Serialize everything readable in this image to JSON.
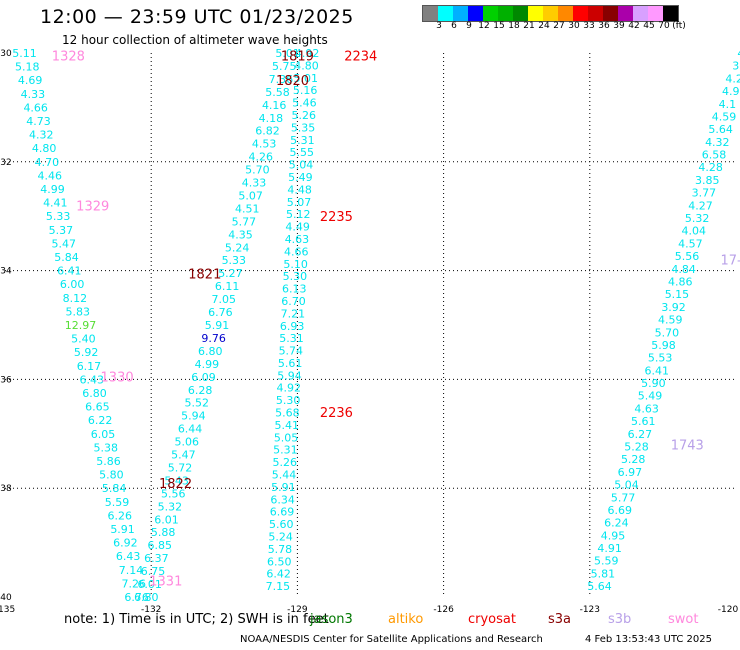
{
  "header": {
    "title": "12:00 — 23:59 UTC 01/23/2025",
    "subtitle": "12 hour collection of altimeter wave heights"
  },
  "colorbar": {
    "colors": [
      "#808080",
      "#00ffff",
      "#00b0ff",
      "#0000ff",
      "#00d000",
      "#00b000",
      "#008800",
      "#ffff00",
      "#ffcc00",
      "#ff8800",
      "#ff0000",
      "#cc0000",
      "#880000",
      "#aa00aa",
      "#d8a0ff",
      "#ff99ff",
      "#000000"
    ],
    "labels": [
      "3",
      "6",
      "9",
      "12",
      "15",
      "18",
      "21",
      "24",
      "27",
      "30",
      "33",
      "36",
      "39",
      "42",
      "45",
      "70",
      "(ft)"
    ]
  },
  "map": {
    "lat_labels": [
      "-30",
      "-32",
      "-34",
      "-36",
      "-38",
      "-40"
    ],
    "lon_labels": [
      "-135",
      "-132",
      "-129",
      "-126",
      "-123",
      "-120"
    ],
    "cycle_colors": {
      "dark": "#880000",
      "red": "#ee0000",
      "pink": "#ff88dd",
      "lav": "#b8a0e8"
    },
    "cycle_labels": [
      {
        "text": "1328",
        "lon": -133.7,
        "lat": -30.05,
        "c": "pink"
      },
      {
        "text": "1819",
        "lon": -129.0,
        "lat": -30.05,
        "c": "dark"
      },
      {
        "text": "2234",
        "lon": -127.7,
        "lat": -30.05,
        "c": "red"
      },
      {
        "text": "1820",
        "lon": -129.1,
        "lat": -30.5,
        "c": "dark"
      },
      {
        "text": "1329",
        "lon": -133.2,
        "lat": -32.8,
        "c": "pink"
      },
      {
        "text": "2235",
        "lon": -128.2,
        "lat": -33.0,
        "c": "red"
      },
      {
        "text": "1821",
        "lon": -130.9,
        "lat": -34.05,
        "c": "dark"
      },
      {
        "text": "17-",
        "lon": -120.1,
        "lat": -33.8,
        "c": "lav"
      },
      {
        "text": "1330",
        "lon": -132.7,
        "lat": -35.95,
        "c": "pink"
      },
      {
        "text": "2236",
        "lon": -128.2,
        "lat": -36.6,
        "c": "red"
      },
      {
        "text": "1743",
        "lon": -121.0,
        "lat": -37.2,
        "c": "lav"
      },
      {
        "text": "1822",
        "lon": -131.5,
        "lat": -37.9,
        "c": "dark"
      },
      {
        "text": "1331",
        "lon": -131.7,
        "lat": -39.7,
        "c": "pink"
      }
    ],
    "tracks": [
      {
        "name": "track-a",
        "color": "#00e5ee",
        "lon0": -134.6,
        "lat0": -30.0,
        "lon1": -132.3,
        "lat1": -40.0,
        "values": [
          "5.11",
          "5.18",
          "4.69",
          "4.33",
          "4.66",
          "4.73",
          "4.32",
          "4.80",
          "4.70",
          "4.46",
          "4.99",
          "4.41",
          "5.33",
          "5.37",
          "5.47",
          "5.84",
          "6.41",
          "6.00",
          "8.12",
          "5.83",
          "12.97",
          "5.40",
          "5.92",
          "6.17",
          "6.43",
          "6.80",
          "6.65",
          "6.22",
          "6.05",
          "5.38",
          "5.86",
          "5.80",
          "5.84",
          "5.59",
          "6.26",
          "5.91",
          "6.92",
          "6.43",
          "7.14",
          "7.26",
          "6.76"
        ]
      },
      {
        "name": "track-b",
        "color": "#00e5ee",
        "lon0": -129.2,
        "lat0": -30.0,
        "lon1": -132.1,
        "lat1": -40.0,
        "values": [
          "5.01",
          "5.75",
          "7.36",
          "5.58",
          "4.16",
          "4.18",
          "6.82",
          "4.53",
          "4.26",
          "5.70",
          "4.33",
          "5.07",
          "4.51",
          "5.77",
          "4.35",
          "5.24",
          "5.33",
          "5.27",
          "6.11",
          "7.05",
          "6.76",
          "5.91",
          "9.76",
          "6.80",
          "4.99",
          "6.09",
          "6.28",
          "5.52",
          "5.94",
          "6.44",
          "5.06",
          "5.47",
          "5.72",
          "5.43",
          "5.56",
          "5.32",
          "6.01",
          "5.88",
          "6.85",
          "6.37",
          "6.75",
          "6.01",
          "6.80"
        ]
      },
      {
        "name": "track-c",
        "color": "#00e5ee",
        "lon0": -128.8,
        "lat0": -30.0,
        "lon1": -129.4,
        "lat1": -39.8,
        "values": [
          "4.92",
          "4.80",
          "5.01",
          "5.16",
          "5.46",
          "5.26",
          "5.35",
          "5.31",
          "5.55",
          "5.04",
          "5.49",
          "4.48",
          "5.07",
          "5.12",
          "4.49",
          "4.63",
          "4.66",
          "5.10",
          "5.30",
          "6.13",
          "6.70",
          "7.21",
          "6.93",
          "5.31",
          "5.74",
          "5.61",
          "5.94",
          "4.92",
          "5.30",
          "5.68",
          "5.41",
          "5.05",
          "5.31",
          "5.26",
          "5.44",
          "5.91",
          "6.34",
          "6.69",
          "5.60",
          "5.24",
          "5.78",
          "6.50",
          "6.42",
          "7.15"
        ]
      },
      {
        "name": "track-d",
        "color": "#00e5ee",
        "lon0": -119.9,
        "lat0": -30.0,
        "lon1": -122.8,
        "lat1": -39.8,
        "values": [
          "4",
          "3.",
          "4.2",
          "4.9",
          "4.1",
          "4.59",
          "5.64",
          "4.32",
          "6.58",
          "4.28",
          "3.85",
          "3.77",
          "4.27",
          "5.32",
          "4.04",
          "4.57",
          "5.56",
          "4.84",
          "4.86",
          "5.15",
          "3.92",
          "4.59",
          "5.70",
          "5.98",
          "5.53",
          "6.41",
          "5.90",
          "5.49",
          "4.63",
          "5.61",
          "6.27",
          "5.28",
          "5.28",
          "6.97",
          "5.04",
          "5.77",
          "6.69",
          "6.24",
          "4.95",
          "4.91",
          "5.59",
          "5.81",
          "5.64"
        ]
      }
    ]
  },
  "footer": {
    "note": "note:  1) Time is in UTC;  2) SWH is in feet",
    "satellites": [
      {
        "name": "jason3",
        "color": "#007700"
      },
      {
        "name": "altiko",
        "color": "#ff9900"
      },
      {
        "name": "cryosat",
        "color": "#ee0000"
      },
      {
        "name": "s3a",
        "color": "#880000"
      },
      {
        "name": "s3b",
        "color": "#b8a0e8"
      },
      {
        "name": "swot",
        "color": "#ff88dd"
      }
    ],
    "center": "NOAA/NESDIS Center for Satellite Applications and Research",
    "timestamp": "4 Feb 13:53:43 UTC 2025"
  }
}
